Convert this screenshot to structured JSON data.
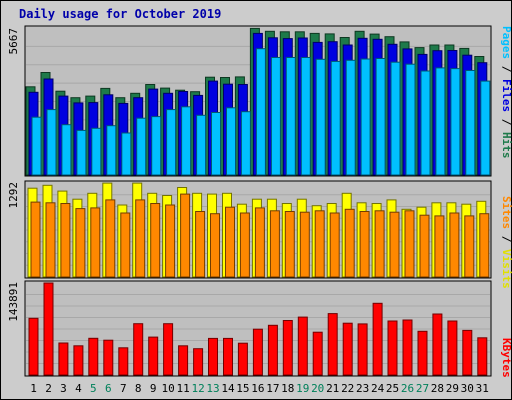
{
  "chart_data": [
    {
      "type": "bar",
      "title": "Daily usage for October 2019",
      "ylabel_parts": [
        "Pages",
        "Files",
        "Hits"
      ],
      "ymax_label": "5667",
      "ylim": [
        0,
        5667
      ],
      "categories": [
        "1",
        "2",
        "3",
        "4",
        "5",
        "6",
        "7",
        "8",
        "9",
        "10",
        "11",
        "12",
        "13",
        "14",
        "15",
        "16",
        "17",
        "18",
        "19",
        "20",
        "21",
        "22",
        "23",
        "24",
        "25",
        "26",
        "27",
        "28",
        "29",
        "30",
        "31"
      ],
      "series": [
        {
          "name": "Hits",
          "color": "#1e7a4a",
          "values": [
            3400,
            3950,
            3230,
            2980,
            3040,
            3340,
            2980,
            3150,
            3490,
            3350,
            3270,
            3210,
            3770,
            3760,
            3780,
            5650,
            5540,
            5520,
            5520,
            5460,
            5440,
            5300,
            5540,
            5430,
            5330,
            5130,
            4910,
            5010,
            5010,
            4880,
            4570
          ]
        },
        {
          "name": "Files",
          "color": "#0000e0",
          "values": [
            3190,
            3700,
            3040,
            2780,
            2790,
            3090,
            2760,
            2980,
            3310,
            3150,
            3220,
            3070,
            3620,
            3500,
            3490,
            5460,
            5290,
            5260,
            5280,
            5110,
            5140,
            5010,
            5270,
            5230,
            5040,
            4860,
            4650,
            4790,
            4800,
            4620,
            4330
          ]
        },
        {
          "name": "Pages",
          "color": "#00c0ff",
          "values": [
            2230,
            2520,
            1940,
            1720,
            1800,
            1900,
            1620,
            2190,
            2250,
            2520,
            2630,
            2300,
            2410,
            2590,
            2440,
            4870,
            4530,
            4530,
            4530,
            4460,
            4380,
            4420,
            4470,
            4490,
            4350,
            4270,
            4010,
            4130,
            4100,
            4030,
            3620
          ]
        }
      ]
    },
    {
      "type": "bar",
      "ylabel_parts": [
        "Sites",
        "Visits"
      ],
      "ymax_label": "1292",
      "ylim": [
        0,
        1292
      ],
      "categories": [
        "1",
        "2",
        "3",
        "4",
        "5",
        "6",
        "7",
        "8",
        "9",
        "10",
        "11",
        "12",
        "13",
        "14",
        "15",
        "16",
        "17",
        "18",
        "19",
        "20",
        "21",
        "22",
        "23",
        "24",
        "25",
        "26",
        "27",
        "28",
        "29",
        "30",
        "31"
      ],
      "series": [
        {
          "name": "Visits",
          "color": "#ffff00",
          "values": [
            1220,
            1260,
            1180,
            1070,
            1150,
            1290,
            990,
            1290,
            1150,
            1120,
            1230,
            1150,
            1140,
            1150,
            1000,
            1070,
            1070,
            1010,
            1070,
            980,
            1010,
            1150,
            1020,
            1010,
            1060,
            930,
            960,
            1020,
            1020,
            1000,
            1040
          ]
        },
        {
          "name": "Sites",
          "color": "#ff8800",
          "values": [
            1030,
            1020,
            1010,
            940,
            950,
            1060,
            880,
            1060,
            1010,
            990,
            1140,
            900,
            870,
            960,
            880,
            950,
            910,
            900,
            890,
            910,
            880,
            930,
            900,
            910,
            890,
            910,
            850,
            840,
            880,
            840,
            870
          ]
        }
      ]
    },
    {
      "type": "bar",
      "ylabel_parts": [
        "KBytes"
      ],
      "ymax_label": "143891",
      "ylim": [
        0,
        143891
      ],
      "categories": [
        "1",
        "2",
        "3",
        "4",
        "5",
        "6",
        "7",
        "8",
        "9",
        "10",
        "11",
        "12",
        "13",
        "14",
        "15",
        "16",
        "17",
        "18",
        "19",
        "20",
        "21",
        "22",
        "23",
        "24",
        "25",
        "26",
        "27",
        "28",
        "29",
        "30",
        "31"
      ],
      "weekend_days": [
        "5",
        "6",
        "12",
        "13",
        "19",
        "20",
        "26",
        "27"
      ],
      "series": [
        {
          "name": "KBytes",
          "color": "#ff0000",
          "values": [
            88700,
            143900,
            50000,
            45600,
            57400,
            54400,
            42600,
            80300,
            59300,
            80300,
            45600,
            41100,
            57300,
            57300,
            49700,
            71600,
            77700,
            85300,
            90600,
            67000,
            96100,
            81000,
            79900,
            112100,
            84400,
            86000,
            68400,
            95400,
            84400,
            69800,
            58200
          ]
        }
      ]
    }
  ]
}
